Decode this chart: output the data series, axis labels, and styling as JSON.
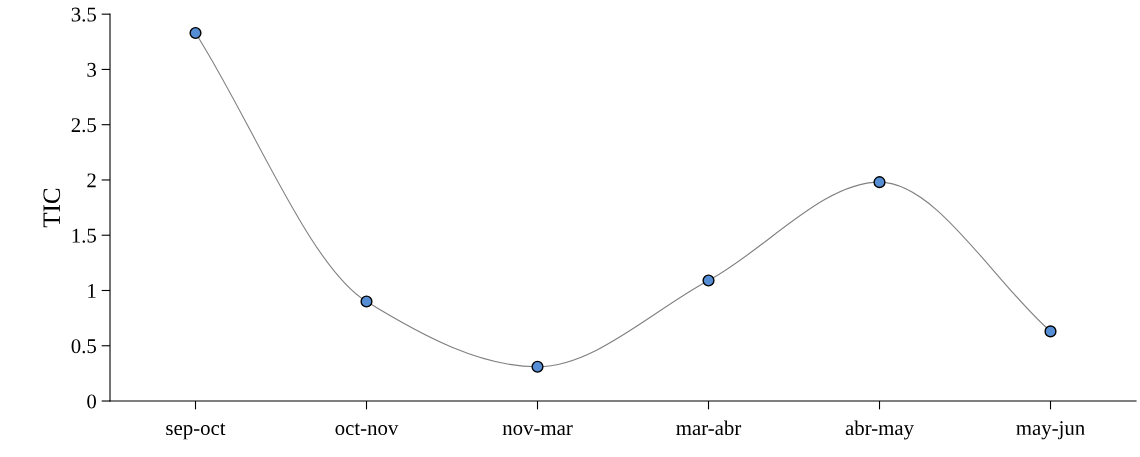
{
  "chart_data": {
    "type": "line",
    "ylabel": "TIC",
    "categories": [
      "sep-oct",
      "oct-nov",
      "nov-mar",
      "mar-abr",
      "abr-may",
      "may-jun"
    ],
    "series": [
      {
        "color": "#808080",
        "colors": [
          "#558ed5",
          "#558ed5",
          "#558ed5",
          "#558ed5",
          "#558ed5",
          "#558ed5"
        ],
        "values": [
          3.33,
          0.9,
          0.31,
          1.09,
          1.98,
          0.63
        ]
      }
    ],
    "marker": "circle",
    "line_style": "solid",
    "ylim": [
      0,
      3.5
    ],
    "yticks": [
      0,
      0.5,
      1,
      1.5,
      2,
      2.5,
      3,
      3.5
    ],
    "grid": false,
    "legend": false
  }
}
